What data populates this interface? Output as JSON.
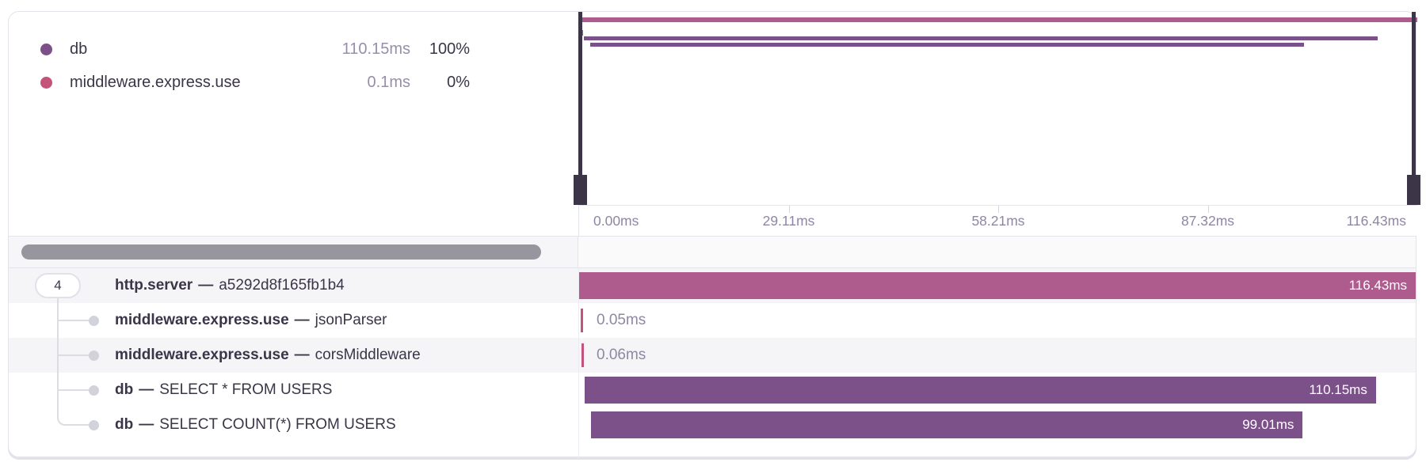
{
  "legend": {
    "items": [
      {
        "label": "db",
        "duration": "110.15ms",
        "percent": "100%",
        "kind": "db"
      },
      {
        "label": "middleware.express.use",
        "duration": "0.1ms",
        "percent": "0%",
        "kind": "middleware"
      }
    ]
  },
  "timeline": {
    "total_ms": 116.43,
    "axis_labels": [
      "0.00ms",
      "29.11ms",
      "58.21ms",
      "87.32ms",
      "116.43ms"
    ]
  },
  "trace": {
    "root_badge": "4",
    "separator": "—",
    "spans": [
      {
        "kind": "server",
        "name": "http.server",
        "detail": "a5292d8f165fb1b4",
        "start_ms": 0,
        "duration_ms": 116.43,
        "duration_label": "116.43ms"
      },
      {
        "kind": "middleware",
        "name": "middleware.express.use",
        "detail": "jsonParser",
        "start_ms": 0.2,
        "duration_ms": 0.05,
        "duration_label": "0.05ms"
      },
      {
        "kind": "middleware",
        "name": "middleware.express.use",
        "detail": "corsMiddleware",
        "start_ms": 0.3,
        "duration_ms": 0.06,
        "duration_label": "0.06ms"
      },
      {
        "kind": "db",
        "name": "db",
        "detail": "SELECT * FROM USERS",
        "start_ms": 0.75,
        "duration_ms": 110.15,
        "duration_label": "110.15ms"
      },
      {
        "kind": "db",
        "name": "db",
        "detail": "SELECT COUNT(*) FROM USERS",
        "start_ms": 1.7,
        "duration_ms": 99.01,
        "duration_label": "99.01ms"
      }
    ]
  },
  "colors": {
    "server": "#ae5b8d",
    "db": "#7c5088",
    "middleware": "#c4537a"
  }
}
